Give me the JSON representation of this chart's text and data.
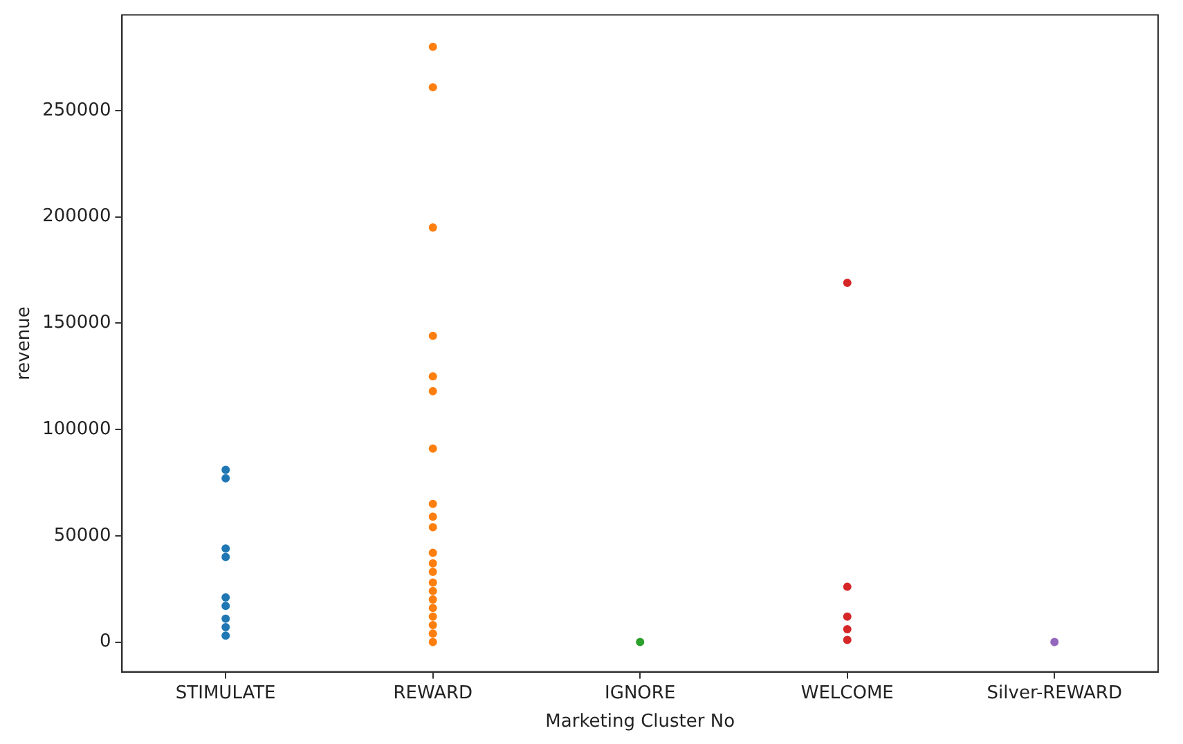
{
  "chart_data": {
    "type": "scatter",
    "xlabel": "Marketing Cluster No",
    "ylabel": "revenue",
    "categories": [
      "STIMULATE",
      "REWARD",
      "IGNORE",
      "WELCOME",
      "Silver-REWARD"
    ],
    "ylim": [
      -14000,
      295000
    ],
    "yticks": [
      0,
      50000,
      100000,
      150000,
      200000,
      250000
    ],
    "grid": false,
    "legend": false,
    "marker": "circle",
    "series": [
      {
        "color": "#1f77b4",
        "x": [
          "STIMULATE",
          "STIMULATE",
          "STIMULATE",
          "STIMULATE",
          "STIMULATE",
          "STIMULATE",
          "STIMULATE",
          "STIMULATE",
          "STIMULATE"
        ],
        "values": [
          77000,
          81000,
          44000,
          40000,
          21000,
          17000,
          11000,
          7000,
          3000
        ]
      },
      {
        "color": "#ff7f0e",
        "x": [
          "REWARD",
          "REWARD",
          "REWARD",
          "REWARD",
          "REWARD",
          "REWARD",
          "REWARD",
          "REWARD",
          "REWARD",
          "REWARD",
          "REWARD",
          "REWARD",
          "REWARD",
          "REWARD",
          "REWARD",
          "REWARD",
          "REWARD",
          "REWARD",
          "REWARD",
          "REWARD",
          "REWARD"
        ],
        "values": [
          280000,
          261000,
          195000,
          125000,
          144000,
          118000,
          91000,
          65000,
          54000,
          59000,
          42000,
          37000,
          33000,
          28000,
          24000,
          20000,
          16000,
          12000,
          8000,
          4000,
          0
        ]
      },
      {
        "color": "#2ca02c",
        "x": [
          "IGNORE"
        ],
        "values": [
          0
        ]
      },
      {
        "color": "#d62728",
        "x": [
          "WELCOME",
          "WELCOME",
          "WELCOME",
          "WELCOME",
          "WELCOME"
        ],
        "values": [
          169000,
          26000,
          12000,
          6000,
          1000
        ]
      },
      {
        "color": "#9467bd",
        "x": [
          "Silver-REWARD"
        ],
        "values": [
          0
        ]
      }
    ]
  }
}
